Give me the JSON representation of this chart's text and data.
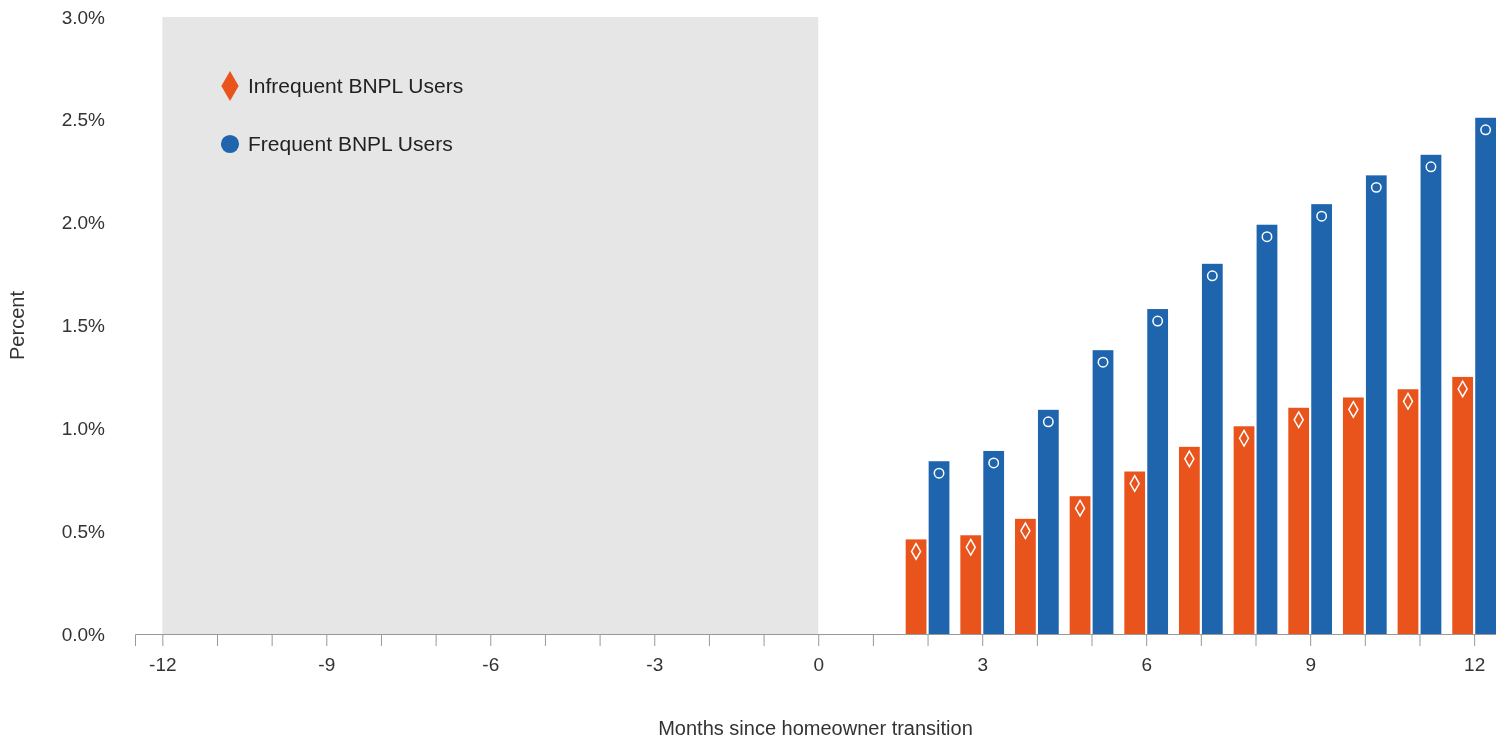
{
  "chart_data": {
    "type": "bar",
    "xlabel": "Months since homeowner transition",
    "ylabel": "Percent",
    "x": [
      2,
      3,
      4,
      5,
      6,
      7,
      8,
      9,
      10,
      11,
      12
    ],
    "series": [
      {
        "name": "Infrequent BNPL Users",
        "color": "#e8541c",
        "marker": "diamond",
        "values": [
          0.46,
          0.48,
          0.56,
          0.67,
          0.79,
          0.91,
          1.01,
          1.1,
          1.15,
          1.19,
          1.25
        ]
      },
      {
        "name": "Frequent BNPL Users",
        "color": "#1e65ad",
        "marker": "circle",
        "values": [
          0.84,
          0.89,
          1.09,
          1.38,
          1.58,
          1.8,
          1.99,
          2.09,
          2.23,
          2.33,
          2.51
        ]
      }
    ],
    "xlim": [
      -12.5,
      12.4
    ],
    "xticks": [
      -12,
      {
        "value": -11,
        "label": null
      },
      {
        "value": -10,
        "label": null
      },
      -9,
      {
        "value": -8,
        "label": null
      },
      {
        "value": -7,
        "label": null
      },
      -6,
      {
        "value": -5,
        "label": null
      },
      {
        "value": -4,
        "label": null
      },
      -3,
      {
        "value": -2,
        "label": null
      },
      {
        "value": -1,
        "label": null
      },
      0,
      {
        "value": 1,
        "label": null
      },
      {
        "value": 2,
        "label": null
      },
      3,
      {
        "value": 4,
        "label": null
      },
      {
        "value": 5,
        "label": null
      },
      6,
      {
        "value": 7,
        "label": null
      },
      {
        "value": 8,
        "label": null
      },
      9,
      {
        "value": 10,
        "label": null
      },
      {
        "value": 11,
        "label": null
      },
      12
    ],
    "ylim": [
      0,
      3
    ],
    "yticks": [
      {
        "value": 0,
        "label": "0.0%"
      },
      {
        "value": 0.5,
        "label": "0.5%"
      },
      {
        "value": 1,
        "label": "1.0%"
      },
      {
        "value": 1.5,
        "label": "1.5%"
      },
      {
        "value": 2,
        "label": "2.0%"
      },
      {
        "value": 2.5,
        "label": "2.5%"
      },
      {
        "value": 3,
        "label": "3.0%"
      }
    ],
    "bands": [
      {
        "axis": "x",
        "from": -12,
        "to": 0,
        "color": "#e6e6e6"
      }
    ],
    "grid": false,
    "legend": "top left"
  }
}
